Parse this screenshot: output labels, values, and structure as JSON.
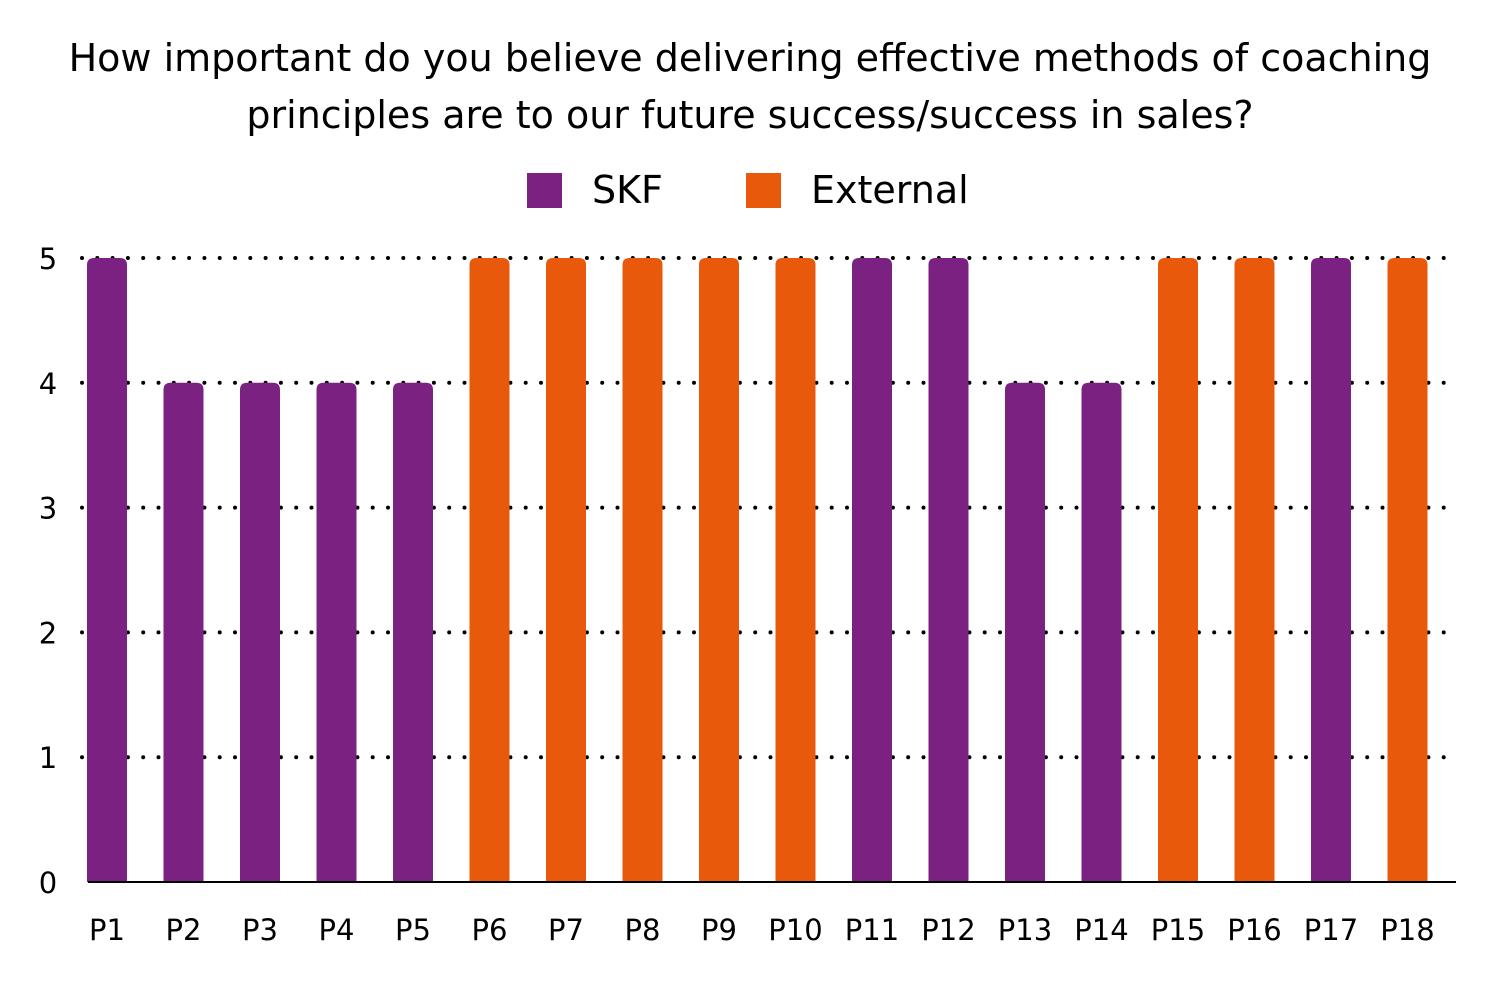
{
  "chart_data": {
    "type": "bar",
    "title_lines": [
      "How important do you believe delivering effective methods of coaching",
      "principles are to our future success/success in sales?"
    ],
    "categories": [
      "P1",
      "P2",
      "P3",
      "P4",
      "P5",
      "P6",
      "P7",
      "P8",
      "P9",
      "P10",
      "P11",
      "P12",
      "P13",
      "P14",
      "P15",
      "P16",
      "P17",
      "P18"
    ],
    "values": [
      5,
      4,
      4,
      4,
      4,
      5,
      5,
      5,
      5,
      5,
      5,
      5,
      4,
      4,
      5,
      5,
      5,
      5
    ],
    "groups": [
      "SKF",
      "SKF",
      "SKF",
      "SKF",
      "SKF",
      "External",
      "External",
      "External",
      "External",
      "External",
      "SKF",
      "SKF",
      "SKF",
      "SKF",
      "External",
      "External",
      "SKF",
      "External"
    ],
    "series": [
      {
        "name": "SKF",
        "color": "#7b2182"
      },
      {
        "name": "External",
        "color": "#e8590c"
      }
    ],
    "ylim": [
      0,
      5
    ],
    "yticks": [
      "0",
      "1",
      "2",
      "3",
      "4",
      "5"
    ],
    "grid": "dotted horizontal",
    "legend_position": "top-center"
  }
}
